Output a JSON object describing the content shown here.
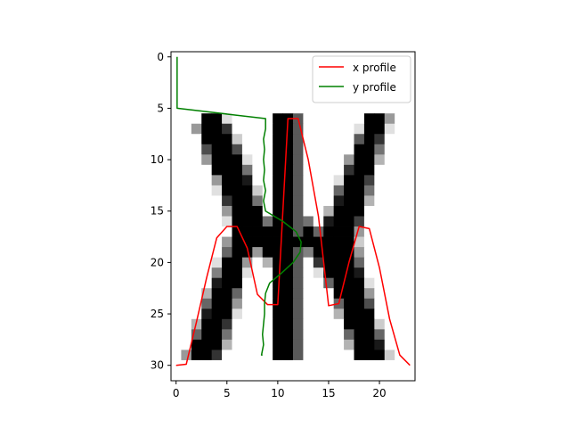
{
  "chart_data": {
    "type": "heatmap",
    "xlim": [
      -0.5,
      23.5
    ],
    "ylim": [
      31.5,
      -0.5
    ],
    "x_ticks": [
      0,
      5,
      10,
      15,
      20
    ],
    "y_ticks": [
      0,
      5,
      10,
      15,
      20,
      25,
      30
    ],
    "grid": false,
    "legend_placement": "top-right",
    "image": {
      "rows": 31,
      "cols": 23,
      "pixels": [
        [
          0,
          0,
          0,
          0,
          0,
          0,
          0,
          0,
          0,
          0,
          0,
          0,
          0,
          0,
          0,
          0,
          0,
          0,
          0,
          0,
          0,
          0,
          0
        ],
        [
          0,
          0,
          0,
          0,
          0,
          0,
          0,
          0,
          0,
          0,
          0,
          0,
          0,
          0,
          0,
          0,
          0,
          0,
          0,
          0,
          0,
          0,
          0
        ],
        [
          0,
          0,
          0,
          0,
          0,
          0,
          0,
          0,
          0,
          0,
          0,
          0,
          0,
          0,
          0,
          0,
          0,
          0,
          0,
          0,
          0,
          0,
          0
        ],
        [
          0,
          0,
          0,
          0,
          0,
          0,
          0,
          0,
          0,
          0,
          0,
          0,
          0,
          0,
          0,
          0,
          0,
          0,
          0,
          0,
          0,
          0,
          0
        ],
        [
          0,
          0,
          0,
          0,
          0,
          0,
          0,
          0,
          0,
          0,
          0,
          0,
          0,
          0,
          0,
          0,
          0,
          0,
          0,
          0,
          0,
          0,
          0
        ],
        [
          0,
          0,
          0,
          0,
          0,
          0,
          0,
          0,
          0,
          0,
          0,
          0,
          0,
          0,
          0,
          0,
          0,
          0,
          0,
          0,
          0,
          0,
          0
        ],
        [
          0,
          0,
          0,
          1,
          1,
          0.12,
          0,
          0,
          0,
          0,
          1,
          1,
          0.65,
          0,
          0,
          0,
          0,
          0,
          0,
          1,
          1,
          0.4,
          0
        ],
        [
          0,
          0,
          0.4,
          1,
          1,
          0.8,
          0,
          0,
          0,
          0,
          1,
          1,
          0.65,
          0,
          0,
          0,
          0,
          0,
          0.12,
          1,
          1,
          0.12,
          0
        ],
        [
          0,
          0,
          0,
          1,
          1,
          1,
          0.2,
          0,
          0,
          0,
          1,
          1,
          0.65,
          0,
          0,
          0,
          0,
          0,
          0.65,
          1,
          0.8,
          0,
          0
        ],
        [
          0,
          0,
          0,
          0.7,
          1,
          1,
          0.7,
          0,
          0,
          0,
          1,
          1,
          0.65,
          0,
          0,
          0,
          0,
          0,
          1,
          1,
          0.55,
          0,
          0
        ],
        [
          0,
          0,
          0,
          0.4,
          1,
          1,
          1,
          0.12,
          0,
          0,
          1,
          1,
          0.65,
          0,
          0,
          0,
          0,
          0.4,
          1,
          1,
          0.3,
          0,
          0
        ],
        [
          0,
          0,
          0,
          0,
          1,
          1,
          1,
          0.55,
          0,
          0,
          1,
          1,
          0.65,
          0,
          0,
          0,
          0,
          0.8,
          1,
          1,
          0,
          0,
          0
        ],
        [
          0,
          0,
          0,
          0,
          0.4,
          1,
          1,
          0.9,
          0,
          0,
          1,
          1,
          0.65,
          0,
          0,
          0,
          0.12,
          1,
          1,
          0.75,
          0,
          0,
          0
        ],
        [
          0,
          0,
          0,
          0,
          0.12,
          1,
          1,
          1,
          0.2,
          0,
          1,
          1,
          0.65,
          0,
          0,
          0,
          0.6,
          1,
          1,
          0.55,
          0,
          0,
          0
        ],
        [
          0,
          0,
          0,
          0,
          0,
          0.8,
          1,
          1,
          0.55,
          0,
          1,
          1,
          0.65,
          0,
          0,
          0,
          0.9,
          1,
          1,
          0.3,
          0,
          0,
          0
        ],
        [
          0,
          0,
          0,
          0,
          0,
          0.4,
          1,
          1,
          1,
          0,
          1,
          1,
          0.65,
          0,
          0,
          0.3,
          1,
          1,
          1,
          0,
          0,
          0,
          0
        ],
        [
          0,
          0,
          0,
          0,
          0,
          0.12,
          1,
          1,
          1,
          0.55,
          1,
          1,
          0.65,
          0.55,
          0,
          0.9,
          1,
          1,
          0.75,
          0,
          0,
          0,
          0
        ],
        [
          0,
          0,
          0,
          0,
          0,
          0,
          1,
          1,
          1,
          1,
          1,
          1,
          0.65,
          1,
          0.6,
          1,
          1,
          1,
          0.4,
          0,
          0,
          0,
          0
        ],
        [
          0,
          0,
          0,
          0,
          0,
          0.4,
          1,
          1,
          1,
          1,
          1,
          1,
          1,
          1,
          1,
          1,
          1,
          1,
          0.2,
          0,
          0,
          0,
          0
        ],
        [
          0,
          0,
          0,
          0,
          0,
          0.6,
          1,
          1,
          0.4,
          1,
          1,
          1,
          0.65,
          0.5,
          1,
          1,
          1,
          1,
          0.4,
          0,
          0,
          0,
          0
        ],
        [
          0,
          0,
          0,
          0,
          0.12,
          1,
          1,
          0.4,
          0,
          0.3,
          1,
          1,
          0.65,
          0,
          0.8,
          1,
          1,
          1,
          0.6,
          0,
          0,
          0,
          0
        ],
        [
          0,
          0,
          0,
          0,
          0.5,
          1,
          1,
          0.12,
          0,
          0,
          1,
          1,
          0.65,
          0,
          0.12,
          1,
          1,
          1,
          0.9,
          0,
          0,
          0,
          0
        ],
        [
          0,
          0,
          0,
          0,
          0.9,
          1,
          1,
          0,
          0,
          0,
          1,
          1,
          0.65,
          0,
          0,
          0.6,
          1,
          1,
          1,
          0.12,
          0,
          0,
          0
        ],
        [
          0,
          0,
          0,
          0.3,
          1,
          1,
          0.6,
          0,
          0,
          0,
          1,
          1,
          0.65,
          0,
          0,
          0,
          1,
          1,
          1,
          0.4,
          0,
          0,
          0
        ],
        [
          0,
          0,
          0,
          0.6,
          1,
          1,
          0.4,
          0,
          0,
          0,
          1,
          1,
          0.65,
          0,
          0,
          0,
          0.6,
          1,
          1,
          0.7,
          0,
          0,
          0
        ],
        [
          0,
          0,
          0,
          0.9,
          1,
          1,
          0.12,
          0,
          0,
          0,
          1,
          1,
          0.65,
          0,
          0,
          0,
          0.3,
          1,
          1,
          1,
          0,
          0,
          0
        ],
        [
          0,
          0,
          0.3,
          1,
          1,
          0.8,
          0,
          0,
          0,
          0,
          1,
          1,
          0.65,
          0,
          0,
          0,
          0,
          1,
          1,
          1,
          0.2,
          0,
          0
        ],
        [
          0,
          0,
          0.6,
          1,
          1,
          0.55,
          0,
          0,
          0,
          0,
          1,
          1,
          0.65,
          0,
          0,
          0,
          0,
          0.6,
          1,
          1,
          0.6,
          0,
          0
        ],
        [
          0,
          0,
          1,
          1,
          1,
          0.3,
          0,
          0,
          0,
          0,
          1,
          1,
          0.65,
          0,
          0,
          0,
          0,
          0.3,
          1,
          1,
          0.9,
          0,
          0
        ],
        [
          0,
          0.4,
          1,
          1,
          0.8,
          0,
          0,
          0,
          0,
          0,
          1,
          1,
          0.65,
          0,
          0,
          0,
          0,
          0,
          1,
          1,
          1,
          0.2,
          0
        ],
        [
          0,
          0,
          0,
          0,
          0,
          0,
          0,
          0,
          0,
          0,
          0,
          0,
          0,
          0,
          0,
          0,
          0,
          0,
          0,
          0,
          0,
          0,
          0
        ]
      ]
    },
    "series": [
      {
        "name": "x profile",
        "color": "#ff0000",
        "x": [
          0,
          1,
          2,
          3,
          4,
          5,
          6,
          7,
          8,
          9,
          10,
          11,
          12,
          13,
          14,
          15,
          16,
          17,
          18,
          19,
          20,
          21,
          22,
          23
        ],
        "y": [
          30,
          29.9,
          25.8,
          21.5,
          17.6,
          16.5,
          16.5,
          18.6,
          23.1,
          24.1,
          24.1,
          6,
          6,
          10,
          15.5,
          24.2,
          24,
          20,
          16.5,
          16.7,
          20.5,
          25.5,
          29,
          30
        ]
      },
      {
        "name": "y profile",
        "color": "#008000",
        "x": [
          0.1,
          0.1,
          0.1,
          0.1,
          0.1,
          0.1,
          8.8,
          8.8,
          8.6,
          8.7,
          8.6,
          8.7,
          8.6,
          8.8,
          8.6,
          8.8,
          10.5,
          11.8,
          12.3,
          12.2,
          11.5,
          10.4,
          9.2,
          8.8,
          8.7,
          8.7,
          8.6,
          8.5,
          8.6,
          8.4,
          8.5
        ],
        "y": [
          0,
          1,
          2,
          3,
          4,
          5,
          6,
          7,
          8,
          9,
          10,
          11,
          12,
          13,
          14,
          15,
          16,
          17,
          18,
          19,
          20,
          21,
          22,
          23,
          24,
          25,
          26,
          27,
          28,
          29,
          29
        ]
      }
    ]
  }
}
